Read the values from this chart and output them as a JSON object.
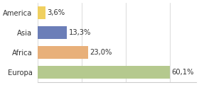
{
  "categories": [
    "America",
    "Asia",
    "Africa",
    "Europa"
  ],
  "values": [
    3.6,
    13.3,
    23.0,
    60.1
  ],
  "labels": [
    "3,6%",
    "13,3%",
    "23,0%",
    "60,1%"
  ],
  "bar_colors": [
    "#f0d060",
    "#6b7eb8",
    "#e8b07a",
    "#b5c98e"
  ],
  "xlim": [
    0,
    72
  ],
  "background_color": "#ffffff",
  "label_fontsize": 7.2,
  "tick_fontsize": 7.2,
  "grid_color": "#cccccc",
  "grid_ticks": [
    0,
    20,
    40,
    60
  ]
}
